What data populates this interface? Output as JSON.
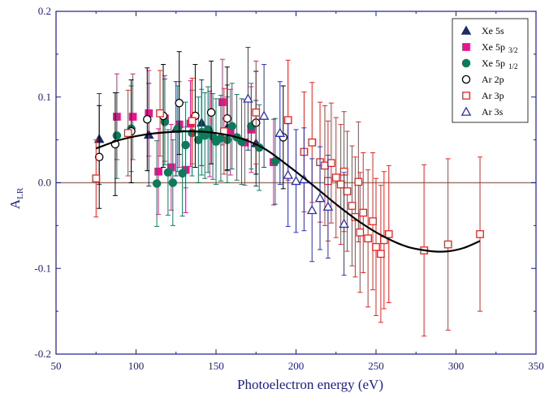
{
  "chart_data": {
    "type": "scatter",
    "xlabel": "Photoelectron energy (eV)",
    "ylabel": {
      "main": "A",
      "sub": "LR"
    },
    "xlim": [
      50,
      350
    ],
    "ylim": [
      -0.2,
      0.2
    ],
    "xticks": [
      50,
      100,
      150,
      200,
      250,
      300,
      350
    ],
    "yticks": [
      -0.2,
      -0.1,
      0.0,
      0.1,
      0.2
    ],
    "xtick_labels": [
      "50",
      "100",
      "150",
      "200",
      "250",
      "300",
      "350"
    ],
    "ytick_labels": [
      "-0.2",
      "-0.1",
      "0.0",
      "0.1",
      "0.2"
    ],
    "zero_line": true,
    "grid": false,
    "legend_position": "top-right",
    "colors": {
      "axis": "#1b1b8f",
      "zero_line": "#9a7a6a",
      "fit": "#000000"
    },
    "series": [
      {
        "name": "Xe 5s",
        "name_sub": "",
        "marker": "triangle",
        "filled": true,
        "color": "#1f2a66",
        "points": [
          {
            "x": 77,
            "y": 0.051,
            "err": 0.053
          },
          {
            "x": 108,
            "y": 0.056,
            "err": 0.06
          },
          {
            "x": 125,
            "y": 0.063,
            "err": 0.055
          },
          {
            "x": 141,
            "y": 0.07,
            "err": 0.05
          },
          {
            "x": 157,
            "y": 0.064,
            "err": 0.05
          },
          {
            "x": 175,
            "y": 0.046,
            "err": 0.05
          }
        ]
      },
      {
        "name": "Xe 5p",
        "name_sub": "3/2",
        "marker": "square",
        "filled": true,
        "color": "#e6158f",
        "points": [
          {
            "x": 88,
            "y": 0.077,
            "err": 0.05
          },
          {
            "x": 98,
            "y": 0.077,
            "err": 0.05
          },
          {
            "x": 108,
            "y": 0.081,
            "err": 0.05
          },
          {
            "x": 114,
            "y": 0.013,
            "err": 0.05
          },
          {
            "x": 118,
            "y": 0.075,
            "err": 0.05
          },
          {
            "x": 122,
            "y": 0.018,
            "err": 0.05
          },
          {
            "x": 127,
            "y": 0.068,
            "err": 0.05
          },
          {
            "x": 131,
            "y": 0.015,
            "err": 0.05
          },
          {
            "x": 134,
            "y": 0.069,
            "err": 0.05
          },
          {
            "x": 146,
            "y": 0.057,
            "err": 0.05
          },
          {
            "x": 154,
            "y": 0.094,
            "err": 0.05
          },
          {
            "x": 159,
            "y": 0.059,
            "err": 0.05
          },
          {
            "x": 168,
            "y": 0.047,
            "err": 0.05
          },
          {
            "x": 172,
            "y": 0.062,
            "err": 0.05
          },
          {
            "x": 186,
            "y": 0.024,
            "err": 0.05
          }
        ]
      },
      {
        "name": "Xe 5p",
        "name_sub": "1/2",
        "marker": "circle",
        "filled": true,
        "color": "#0e7a5c",
        "points": [
          {
            "x": 88,
            "y": 0.055,
            "err": 0.05
          },
          {
            "x": 97,
            "y": 0.063,
            "err": 0.05
          },
          {
            "x": 113,
            "y": -0.001,
            "err": 0.05
          },
          {
            "x": 118,
            "y": 0.071,
            "err": 0.05
          },
          {
            "x": 120,
            "y": 0.012,
            "err": 0.05
          },
          {
            "x": 123,
            "y": 0.0,
            "err": 0.05
          },
          {
            "x": 126,
            "y": 0.063,
            "err": 0.05
          },
          {
            "x": 129,
            "y": 0.011,
            "err": 0.05
          },
          {
            "x": 131,
            "y": 0.044,
            "err": 0.05
          },
          {
            "x": 135,
            "y": 0.058,
            "err": 0.05
          },
          {
            "x": 139,
            "y": 0.05,
            "err": 0.05
          },
          {
            "x": 141,
            "y": 0.059,
            "err": 0.05
          },
          {
            "x": 143,
            "y": 0.055,
            "err": 0.05
          },
          {
            "x": 145,
            "y": 0.062,
            "err": 0.05
          },
          {
            "x": 148,
            "y": 0.054,
            "err": 0.05
          },
          {
            "x": 150,
            "y": 0.048,
            "err": 0.05
          },
          {
            "x": 153,
            "y": 0.052,
            "err": 0.05
          },
          {
            "x": 157,
            "y": 0.05,
            "err": 0.05
          },
          {
            "x": 160,
            "y": 0.066,
            "err": 0.05
          },
          {
            "x": 163,
            "y": 0.053,
            "err": 0.05
          },
          {
            "x": 166,
            "y": 0.048,
            "err": 0.05
          },
          {
            "x": 172,
            "y": 0.066,
            "err": 0.05
          },
          {
            "x": 177,
            "y": 0.041,
            "err": 0.05
          },
          {
            "x": 187,
            "y": 0.025,
            "err": 0.05
          }
        ]
      },
      {
        "name": "Ar 2p",
        "name_sub": "",
        "marker": "circle",
        "filled": false,
        "color": "#000000",
        "points": [
          {
            "x": 77,
            "y": 0.03,
            "err": 0.06
          },
          {
            "x": 87,
            "y": 0.045,
            "err": 0.06
          },
          {
            "x": 97,
            "y": 0.06,
            "err": 0.06
          },
          {
            "x": 107,
            "y": 0.074,
            "err": 0.06
          },
          {
            "x": 117,
            "y": 0.078,
            "err": 0.06
          },
          {
            "x": 127,
            "y": 0.093,
            "err": 0.06
          },
          {
            "x": 137,
            "y": 0.078,
            "err": 0.06
          },
          {
            "x": 147,
            "y": 0.082,
            "err": 0.06
          },
          {
            "x": 157,
            "y": 0.075,
            "err": 0.06
          },
          {
            "x": 175,
            "y": 0.07,
            "err": 0.06
          },
          {
            "x": 192,
            "y": 0.053,
            "err": 0.06
          }
        ]
      },
      {
        "name": "Ar 3p",
        "name_sub": "",
        "marker": "square",
        "filled": false,
        "color": "#e8231f",
        "points": [
          {
            "x": 75,
            "y": 0.005,
            "err": 0.045
          },
          {
            "x": 95,
            "y": 0.058,
            "err": 0.05
          },
          {
            "x": 115,
            "y": 0.081,
            "err": 0.05
          },
          {
            "x": 135,
            "y": 0.072,
            "err": 0.05
          },
          {
            "x": 155,
            "y": 0.06,
            "err": 0.05
          },
          {
            "x": 175,
            "y": 0.082,
            "err": 0.06
          },
          {
            "x": 195,
            "y": 0.073,
            "err": 0.07
          },
          {
            "x": 205,
            "y": 0.036,
            "err": 0.07
          },
          {
            "x": 210,
            "y": 0.047,
            "err": 0.07
          },
          {
            "x": 215,
            "y": 0.024,
            "err": 0.07
          },
          {
            "x": 218,
            "y": 0.02,
            "err": 0.07
          },
          {
            "x": 220,
            "y": 0.002,
            "err": 0.07
          },
          {
            "x": 222,
            "y": 0.023,
            "err": 0.07
          },
          {
            "x": 225,
            "y": 0.006,
            "err": 0.07
          },
          {
            "x": 228,
            "y": -0.002,
            "err": 0.07
          },
          {
            "x": 230,
            "y": 0.013,
            "err": 0.07
          },
          {
            "x": 232,
            "y": -0.01,
            "err": 0.07
          },
          {
            "x": 235,
            "y": -0.027,
            "err": 0.07
          },
          {
            "x": 237,
            "y": -0.04,
            "err": 0.07
          },
          {
            "x": 239,
            "y": 0.001,
            "err": 0.07
          },
          {
            "x": 240,
            "y": -0.058,
            "err": 0.07
          },
          {
            "x": 242,
            "y": -0.035,
            "err": 0.07
          },
          {
            "x": 245,
            "y": -0.065,
            "err": 0.08
          },
          {
            "x": 248,
            "y": -0.045,
            "err": 0.08
          },
          {
            "x": 250,
            "y": -0.075,
            "err": 0.08
          },
          {
            "x": 253,
            "y": -0.083,
            "err": 0.08
          },
          {
            "x": 255,
            "y": -0.067,
            "err": 0.08
          },
          {
            "x": 258,
            "y": -0.06,
            "err": 0.08
          },
          {
            "x": 280,
            "y": -0.079,
            "err": 0.1
          },
          {
            "x": 295,
            "y": -0.072,
            "err": 0.1
          },
          {
            "x": 315,
            "y": -0.06,
            "err": 0.09
          }
        ]
      },
      {
        "name": "Ar 3s",
        "name_sub": "",
        "marker": "triangle",
        "filled": false,
        "color": "#2b2fb0",
        "points": [
          {
            "x": 170,
            "y": 0.098,
            "err": 0.06
          },
          {
            "x": 180,
            "y": 0.078,
            "err": 0.06
          },
          {
            "x": 190,
            "y": 0.058,
            "err": 0.06
          },
          {
            "x": 195,
            "y": 0.009,
            "err": 0.06
          },
          {
            "x": 200,
            "y": 0.002,
            "err": 0.06
          },
          {
            "x": 205,
            "y": 0.004,
            "err": 0.06
          },
          {
            "x": 210,
            "y": -0.032,
            "err": 0.06
          },
          {
            "x": 215,
            "y": -0.018,
            "err": 0.06
          },
          {
            "x": 220,
            "y": -0.028,
            "err": 0.06
          },
          {
            "x": 230,
            "y": -0.048,
            "err": 0.06
          }
        ]
      }
    ],
    "fit_curve": {
      "x": [
        75,
        90,
        105,
        120,
        135,
        150,
        165,
        180,
        195,
        210,
        225,
        240,
        255,
        270,
        285,
        295,
        305,
        315
      ],
      "y": [
        0.04,
        0.05,
        0.056,
        0.059,
        0.06,
        0.058,
        0.052,
        0.04,
        0.02,
        -0.002,
        -0.025,
        -0.046,
        -0.063,
        -0.075,
        -0.08,
        -0.08,
        -0.076,
        -0.068
      ]
    }
  }
}
